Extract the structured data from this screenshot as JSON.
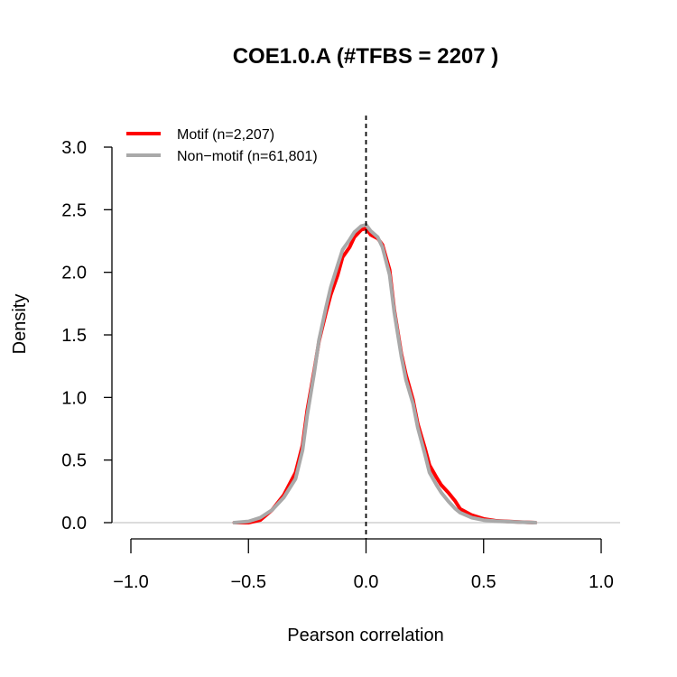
{
  "chart_data": {
    "type": "line",
    "title": "COE1.0.A (#TFBS = 2207 )",
    "xlabel": "Pearson correlation",
    "ylabel": "Density",
    "xlim": [
      -1.0,
      1.0
    ],
    "ylim": [
      0,
      3.0
    ],
    "x_ticks": [
      "−1.0",
      "−0.5",
      "0.0",
      "0.5",
      "1.0"
    ],
    "x_tick_values": [
      -1.0,
      -0.5,
      0.0,
      0.5,
      1.0
    ],
    "y_ticks": [
      "0.0",
      "0.5",
      "1.0",
      "1.5",
      "2.0",
      "2.5",
      "3.0"
    ],
    "y_tick_values": [
      0.0,
      0.5,
      1.0,
      1.5,
      2.0,
      2.5,
      3.0
    ],
    "vline_x": 0.0,
    "baseline_y": 0.0,
    "grid": false,
    "legend_position": "top-left",
    "series": [
      {
        "name": "Motif (n=2,207)",
        "color": "#ff0000",
        "x": [
          -0.56,
          -0.5,
          -0.45,
          -0.4,
          -0.35,
          -0.3,
          -0.27,
          -0.25,
          -0.22,
          -0.2,
          -0.17,
          -0.15,
          -0.12,
          -0.1,
          -0.07,
          -0.05,
          -0.02,
          0.0,
          0.02,
          0.05,
          0.07,
          0.1,
          0.12,
          0.15,
          0.17,
          0.2,
          0.22,
          0.25,
          0.27,
          0.3,
          0.32,
          0.35,
          0.38,
          0.4,
          0.45,
          0.5,
          0.55,
          0.6,
          0.65,
          0.72
        ],
        "y": [
          0.0,
          0.0,
          0.02,
          0.1,
          0.22,
          0.4,
          0.62,
          0.9,
          1.22,
          1.45,
          1.68,
          1.82,
          1.98,
          2.12,
          2.2,
          2.28,
          2.34,
          2.35,
          2.3,
          2.27,
          2.22,
          2.02,
          1.7,
          1.35,
          1.18,
          0.98,
          0.79,
          0.6,
          0.46,
          0.36,
          0.3,
          0.24,
          0.17,
          0.11,
          0.06,
          0.03,
          0.015,
          0.01,
          0.005,
          0.0
        ]
      },
      {
        "name": "Non−motif (n=61,801)",
        "color": "#a9a9a9",
        "x": [
          -0.56,
          -0.5,
          -0.45,
          -0.4,
          -0.35,
          -0.3,
          -0.27,
          -0.25,
          -0.22,
          -0.2,
          -0.17,
          -0.15,
          -0.12,
          -0.1,
          -0.07,
          -0.05,
          -0.02,
          0.0,
          0.02,
          0.05,
          0.07,
          0.1,
          0.12,
          0.15,
          0.17,
          0.2,
          0.22,
          0.25,
          0.27,
          0.3,
          0.32,
          0.35,
          0.38,
          0.4,
          0.45,
          0.5,
          0.55,
          0.6,
          0.65,
          0.72
        ],
        "y": [
          0.0,
          0.01,
          0.04,
          0.1,
          0.2,
          0.35,
          0.58,
          0.86,
          1.2,
          1.46,
          1.72,
          1.88,
          2.06,
          2.18,
          2.26,
          2.32,
          2.37,
          2.38,
          2.33,
          2.28,
          2.2,
          1.98,
          1.68,
          1.33,
          1.14,
          0.95,
          0.76,
          0.55,
          0.4,
          0.3,
          0.24,
          0.17,
          0.11,
          0.08,
          0.04,
          0.02,
          0.012,
          0.008,
          0.004,
          0.0
        ]
      }
    ]
  }
}
